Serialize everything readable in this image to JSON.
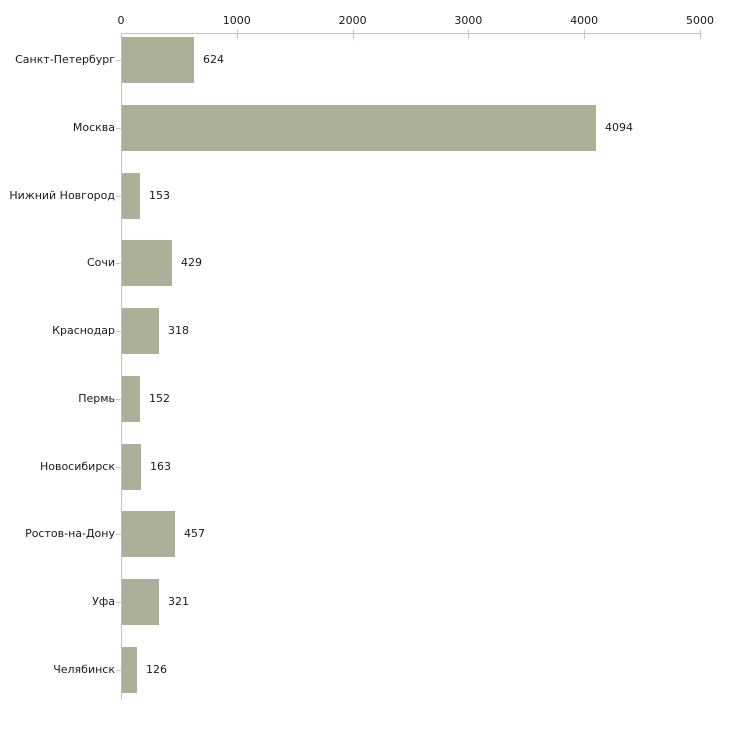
{
  "chart_data": {
    "type": "bar",
    "orientation": "horizontal",
    "title": "",
    "xlabel": "",
    "ylabel": "",
    "categories": [
      "Санкт-Петербург",
      "Москва",
      "Нижний Новгород",
      "Сочи",
      "Краснодар",
      "Пермь",
      "Новосибирск",
      "Ростов-на-Дону",
      "Уфа",
      "Челябинск"
    ],
    "values": [
      624,
      4094,
      153,
      429,
      318,
      152,
      163,
      457,
      321,
      126
    ],
    "value_labels": [
      "624",
      "4094",
      "153",
      "429",
      "318",
      "152",
      "163",
      "457",
      "321",
      "126"
    ],
    "x_ticks": [
      0,
      1000,
      2000,
      3000,
      4000,
      5000
    ],
    "x_tick_labels": [
      "0",
      "1000",
      "2000",
      "3000",
      "4000",
      "5000"
    ],
    "xlim": [
      0,
      5000
    ],
    "grid": false,
    "legend": false,
    "colors": {
      "bar": "#abb098",
      "tick_mark": "#c9cc9e",
      "axis_line": "#c2c2c2",
      "text": "#1a1a1a",
      "background": "#ffffff"
    }
  }
}
